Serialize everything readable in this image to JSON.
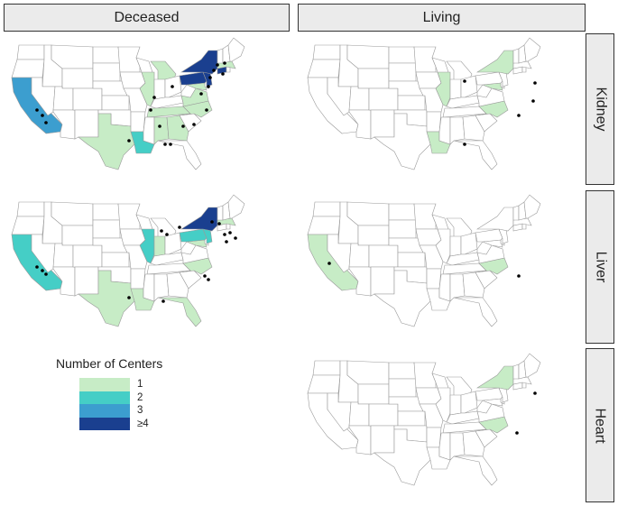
{
  "columns": [
    "Deceased",
    "Living"
  ],
  "rows": [
    "Kidney",
    "Liver",
    "Heart"
  ],
  "legend": {
    "title": "Number of Centers",
    "items": [
      {
        "label": "1",
        "color": "#c7ecc6"
      },
      {
        "label": "2",
        "color": "#45cec6"
      },
      {
        "label": "3",
        "color": "#3c9ecf"
      },
      {
        "label": "≥4",
        "color": "#1a3f8f"
      }
    ]
  },
  "colors": {
    "state_default": "#ffffff",
    "state_border": "#9a9a9a",
    "center_dot": "#000000"
  },
  "panels": [
    {
      "row": "Kidney",
      "column": "Deceased",
      "states": {
        "CA": 3,
        "TX": 1,
        "LA": 2,
        "IL": 1,
        "MI": 1,
        "NY": 4,
        "PA": 4,
        "NJ": 4,
        "CT": 4,
        "MA": 1,
        "TN": 1,
        "GA": 1,
        "AL": 1,
        "NC": 1,
        "VA": 1,
        "MD": 1
      }
    },
    {
      "row": "Kidney",
      "column": "Living",
      "states": {
        "IL": 1,
        "NY": 1,
        "MD": 1,
        "NC": 1,
        "LA": 1
      }
    },
    {
      "row": "Liver",
      "column": "Deceased",
      "states": {
        "CA": 2,
        "TX": 1,
        "IL": 2,
        "IN": 1,
        "NY": 4,
        "PA": 2,
        "NJ": 2,
        "MA": 1,
        "FL": 1,
        "NC": 1,
        "LA": 1,
        "MD": 1
      }
    },
    {
      "row": "Liver",
      "column": "Living",
      "states": {
        "CA": 1,
        "NC": 1
      }
    },
    {
      "row": "Heart",
      "column": "Living",
      "states": {
        "NY": 1,
        "NC": 1
      }
    }
  ]
}
